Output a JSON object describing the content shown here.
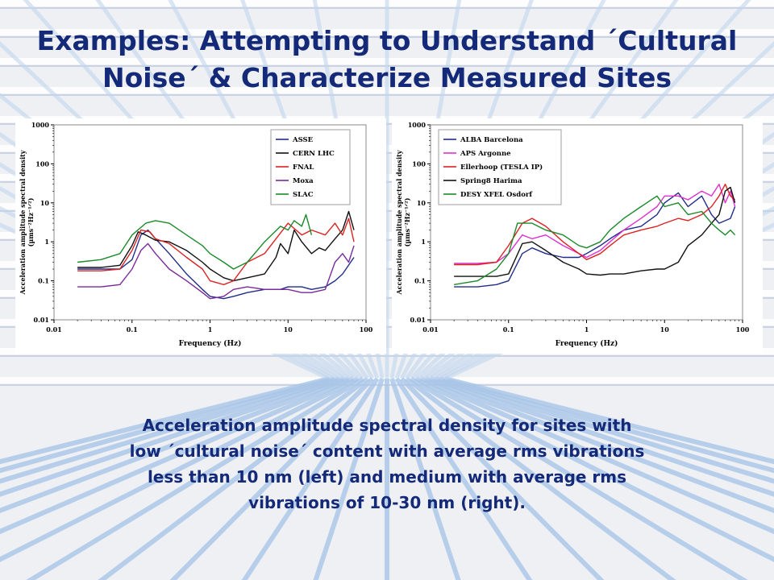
{
  "slide": {
    "title_line1": "Examples: Attempting to Understand ´Cultural",
    "title_line2": "Noise´ & Characterize Measured Sites",
    "caption_line1": "Acceleration amplitude spectral density for sites with",
    "caption_line2": "low ´cultural noise´ content with average rms vibrations",
    "caption_line3": "less than 10 nm (left) and medium with average rms",
    "caption_line4": "vibrations of 10-30 nm (right)."
  },
  "chart_data": [
    {
      "type": "line",
      "xlabel": "Frequency (Hz)",
      "ylabel": "Acceleration amplitude spectral density",
      "ylabel_units": "(µms⁻²Hz⁻¹ᐟ²)",
      "x_scale": "log",
      "y_scale": "log",
      "xlim": [
        0.01,
        100
      ],
      "ylim": [
        0.01,
        1000
      ],
      "x_ticks": [
        "0.01",
        "0.1",
        "1",
        "10",
        "100"
      ],
      "y_ticks": [
        "0.01",
        "0.1",
        "1",
        "10",
        "100",
        "1000"
      ],
      "legend_position": "top-right",
      "series": [
        {
          "name": "ASSE",
          "color": "#1f2d8a",
          "x": [
            0.02,
            0.04,
            0.07,
            0.1,
            0.13,
            0.16,
            0.2,
            0.3,
            0.5,
            0.8,
            1,
            1.5,
            2,
            3,
            5,
            8,
            10,
            15,
            20,
            30,
            40,
            50,
            70
          ],
          "y": [
            0.2,
            0.2,
            0.2,
            0.35,
            1.5,
            2.0,
            1.2,
            0.5,
            0.15,
            0.06,
            0.04,
            0.035,
            0.04,
            0.05,
            0.06,
            0.06,
            0.07,
            0.07,
            0.06,
            0.07,
            0.1,
            0.15,
            0.4
          ]
        },
        {
          "name": "CERN LHC",
          "color": "#111111",
          "x": [
            0.02,
            0.04,
            0.07,
            0.1,
            0.12,
            0.15,
            0.2,
            0.3,
            0.5,
            0.8,
            1,
            1.5,
            2,
            3,
            5,
            7,
            8,
            10,
            12,
            15,
            20,
            25,
            30,
            40,
            50,
            60,
            70
          ],
          "y": [
            0.22,
            0.22,
            0.25,
            0.8,
            1.8,
            1.5,
            1.1,
            1.0,
            0.6,
            0.3,
            0.2,
            0.12,
            0.1,
            0.12,
            0.15,
            0.4,
            0.9,
            0.5,
            2.0,
            1.0,
            0.5,
            0.7,
            0.6,
            1.2,
            2.0,
            6.0,
            2.0
          ]
        },
        {
          "name": "FNAL",
          "color": "#dd2222",
          "x": [
            0.02,
            0.04,
            0.07,
            0.1,
            0.13,
            0.17,
            0.2,
            0.3,
            0.5,
            0.8,
            1,
            1.5,
            2,
            3,
            5,
            7,
            10,
            15,
            20,
            30,
            40,
            50,
            60,
            70
          ],
          "y": [
            0.18,
            0.18,
            0.2,
            0.6,
            2.0,
            1.8,
            1.2,
            0.9,
            0.4,
            0.2,
            0.1,
            0.08,
            0.1,
            0.3,
            0.5,
            1.2,
            3.0,
            1.5,
            2.0,
            1.5,
            3.0,
            1.5,
            4.0,
            1.0
          ]
        },
        {
          "name": "Moxa",
          "color": "#7a2a9a",
          "x": [
            0.02,
            0.04,
            0.07,
            0.1,
            0.13,
            0.16,
            0.2,
            0.3,
            0.5,
            0.8,
            1,
            1.5,
            2,
            3,
            5,
            10,
            15,
            20,
            30,
            40,
            50,
            60,
            70
          ],
          "y": [
            0.07,
            0.07,
            0.08,
            0.2,
            0.6,
            0.9,
            0.5,
            0.2,
            0.1,
            0.05,
            0.035,
            0.04,
            0.06,
            0.07,
            0.06,
            0.06,
            0.05,
            0.05,
            0.06,
            0.3,
            0.5,
            0.3,
            0.8
          ]
        },
        {
          "name": "SLAC",
          "color": "#1a8a2a",
          "x": [
            0.02,
            0.04,
            0.07,
            0.1,
            0.15,
            0.2,
            0.3,
            0.5,
            0.8,
            1,
            1.5,
            2,
            3,
            5,
            8,
            10,
            12,
            15,
            17,
            20
          ],
          "y": [
            0.3,
            0.35,
            0.5,
            1.5,
            3.0,
            3.5,
            3.0,
            1.5,
            0.8,
            0.5,
            0.3,
            0.2,
            0.3,
            1.0,
            2.5,
            2.0,
            3.5,
            2.5,
            5.0,
            1.5
          ]
        }
      ]
    },
    {
      "type": "line",
      "xlabel": "Frequency (Hz)",
      "ylabel": "Acceleration amplitude spectral density",
      "ylabel_units": "(µms⁻²Hz⁻¹ᐟ²)",
      "x_scale": "log",
      "y_scale": "log",
      "xlim": [
        0.01,
        100
      ],
      "ylim": [
        0.01,
        1000
      ],
      "x_ticks": [
        "0.01",
        "0.1",
        "1",
        "10",
        "100"
      ],
      "y_ticks": [
        "0.01",
        "0.1",
        "1",
        "10",
        "100",
        "1000"
      ],
      "legend_position": "top-left",
      "series": [
        {
          "name": "ALBA Barcelona",
          "color": "#1f2d8a",
          "x": [
            0.02,
            0.04,
            0.07,
            0.1,
            0.15,
            0.2,
            0.3,
            0.5,
            0.8,
            1,
            1.5,
            2,
            3,
            5,
            8,
            10,
            15,
            20,
            30,
            40,
            50,
            70,
            80
          ],
          "y": [
            0.07,
            0.07,
            0.08,
            0.1,
            0.5,
            0.7,
            0.5,
            0.4,
            0.4,
            0.5,
            0.8,
            1.2,
            2.0,
            2.5,
            5.0,
            10.0,
            18.0,
            8.0,
            15.0,
            5.0,
            3.0,
            4.0,
            8.0
          ]
        },
        {
          "name": "APS Argonne",
          "color": "#e030d0",
          "x": [
            0.02,
            0.04,
            0.07,
            0.1,
            0.15,
            0.2,
            0.3,
            0.5,
            0.8,
            1,
            1.5,
            2,
            3,
            5,
            8,
            10,
            15,
            20,
            30,
            40,
            50,
            60,
            70,
            80
          ],
          "y": [
            0.28,
            0.28,
            0.3,
            0.5,
            1.5,
            1.2,
            1.5,
            0.8,
            0.5,
            0.4,
            0.6,
            1.0,
            2.0,
            4.0,
            8.0,
            15.0,
            15.0,
            12.0,
            20.0,
            15.0,
            30.0,
            10.0,
            20.0,
            8.0
          ]
        },
        {
          "name": "Ellerhoop (TESLA IP)",
          "color": "#dd2222",
          "x": [
            0.02,
            0.04,
            0.07,
            0.1,
            0.15,
            0.2,
            0.3,
            0.5,
            0.8,
            1,
            1.5,
            2,
            3,
            5,
            8,
            10,
            15,
            20,
            30,
            40,
            50,
            60,
            70,
            80
          ],
          "y": [
            0.26,
            0.26,
            0.3,
            0.8,
            3.0,
            4.0,
            2.5,
            1.0,
            0.5,
            0.35,
            0.5,
            0.8,
            1.5,
            2.0,
            2.5,
            3.0,
            4.0,
            3.5,
            5.0,
            8.0,
            15.0,
            30.0,
            15.0,
            12.0
          ]
        },
        {
          "name": "Spring8 Harima",
          "color": "#111111",
          "x": [
            0.02,
            0.04,
            0.07,
            0.1,
            0.15,
            0.2,
            0.3,
            0.5,
            0.8,
            1,
            1.5,
            2,
            3,
            5,
            8,
            10,
            15,
            20,
            30,
            40,
            50,
            60,
            70,
            80
          ],
          "y": [
            0.13,
            0.13,
            0.13,
            0.15,
            0.9,
            1.0,
            0.6,
            0.3,
            0.2,
            0.15,
            0.14,
            0.15,
            0.15,
            0.18,
            0.2,
            0.2,
            0.3,
            0.8,
            1.5,
            3.0,
            5.0,
            20.0,
            25.0,
            10.0
          ]
        },
        {
          "name": "DESY XFEL Osdorf",
          "color": "#1a8a2a",
          "x": [
            0.02,
            0.04,
            0.07,
            0.1,
            0.13,
            0.2,
            0.3,
            0.5,
            0.8,
            1,
            1.5,
            2,
            3,
            5,
            8,
            10,
            15,
            20,
            30,
            40,
            50,
            60,
            70,
            80
          ],
          "y": [
            0.08,
            0.1,
            0.2,
            0.5,
            3.0,
            3.0,
            2.0,
            1.5,
            0.8,
            0.7,
            1.0,
            2.0,
            4.0,
            8.0,
            15.0,
            8.0,
            10.0,
            5.0,
            6.0,
            3.0,
            2.0,
            1.5,
            2.0,
            1.5
          ]
        }
      ]
    }
  ]
}
